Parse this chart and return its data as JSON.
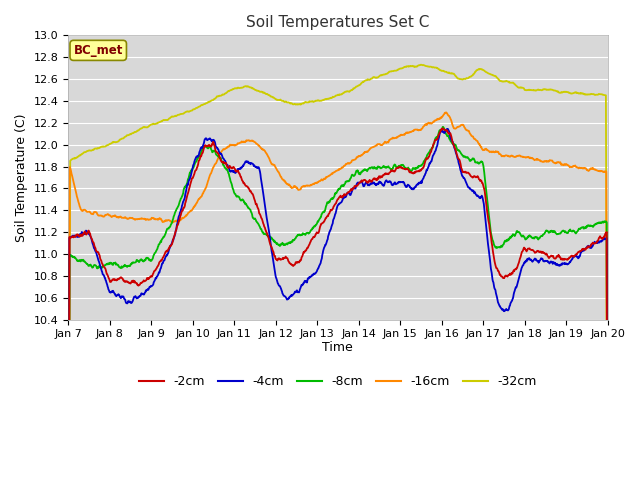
{
  "title": "Soil Temperatures Set C",
  "xlabel": "Time",
  "ylabel": "Soil Temperature (C)",
  "ylim": [
    10.4,
    13.0
  ],
  "xlim": [
    0,
    13
  ],
  "xtick_labels": [
    "Jan 7",
    "Jan 8",
    "Jan 9",
    "Jan 10",
    "Jan 11",
    "Jan 12",
    "Jan 13",
    "Jan 14",
    "Jan 15",
    "Jan 16",
    "Jan 17",
    "Jan 18",
    "Jan 19",
    "Jan 20"
  ],
  "xtick_positions": [
    0,
    1,
    2,
    3,
    4,
    5,
    6,
    7,
    8,
    9,
    10,
    11,
    12,
    13
  ],
  "colors": {
    "-2cm": "#cc0000",
    "-4cm": "#0000cc",
    "-8cm": "#00bb00",
    "-16cm": "#ff8800",
    "-32cm": "#cccc00"
  },
  "legend_label": "BC_met",
  "fig_bg": "#ffffff",
  "plot_bg": "#d8d8d8",
  "grid_color": "#ffffff"
}
